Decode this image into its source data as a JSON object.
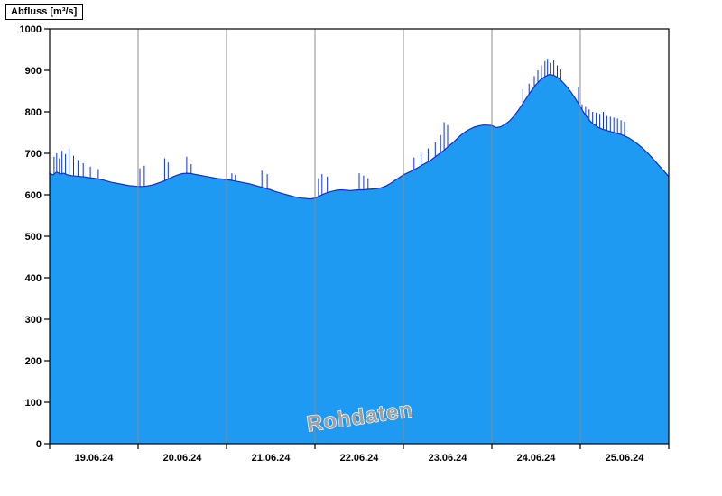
{
  "page": {
    "background": "#ffffff"
  },
  "chart_data": {
    "type": "area",
    "title": "Abfluss [m³/s]",
    "ylabel": "Abfluss [m³/s]",
    "xlabel": "",
    "watermark": "Rohdaten",
    "legend": "none",
    "grid": "vertical lines at day boundaries",
    "xlim_days": [
      0,
      7
    ],
    "ylim": [
      0,
      1000
    ],
    "y_ticks": [
      0,
      100,
      200,
      300,
      400,
      500,
      600,
      700,
      800,
      900,
      1000
    ],
    "x_tick_labels": [
      "19.06.24",
      "20.06.24",
      "21.06.24",
      "22.06.24",
      "23.06.24",
      "24.06.24",
      "25.06.24"
    ],
    "colors": {
      "fill": "#1e9af2",
      "line": "#0a33cc",
      "grid": "#8c8c8c",
      "axis": "#000000",
      "watermark": "#a0a0a0"
    },
    "series": [
      {
        "name": "Abfluss Rohdaten",
        "unit": "m³/s",
        "x_unit": "days since 19.06.24 00:00",
        "points": [
          [
            0.0,
            652
          ],
          [
            0.04,
            648
          ],
          [
            0.08,
            655
          ],
          [
            0.12,
            650
          ],
          [
            0.16,
            652
          ],
          [
            0.2,
            648
          ],
          [
            0.25,
            646
          ],
          [
            0.3,
            645
          ],
          [
            0.35,
            644
          ],
          [
            0.4,
            643
          ],
          [
            0.45,
            641
          ],
          [
            0.5,
            640
          ],
          [
            0.55,
            638
          ],
          [
            0.6,
            636
          ],
          [
            0.65,
            633
          ],
          [
            0.7,
            630
          ],
          [
            0.75,
            628
          ],
          [
            0.8,
            626
          ],
          [
            0.85,
            624
          ],
          [
            0.9,
            622
          ],
          [
            0.95,
            621
          ],
          [
            1.0,
            620
          ],
          [
            1.05,
            620
          ],
          [
            1.1,
            621
          ],
          [
            1.15,
            623
          ],
          [
            1.2,
            626
          ],
          [
            1.25,
            630
          ],
          [
            1.3,
            634
          ],
          [
            1.35,
            639
          ],
          [
            1.4,
            644
          ],
          [
            1.45,
            648
          ],
          [
            1.5,
            651
          ],
          [
            1.55,
            652
          ],
          [
            1.6,
            651
          ],
          [
            1.65,
            649
          ],
          [
            1.7,
            647
          ],
          [
            1.75,
            645
          ],
          [
            1.8,
            643
          ],
          [
            1.85,
            641
          ],
          [
            1.9,
            639
          ],
          [
            1.95,
            638
          ],
          [
            2.0,
            637
          ],
          [
            2.05,
            635
          ],
          [
            2.1,
            633
          ],
          [
            2.15,
            631
          ],
          [
            2.2,
            629
          ],
          [
            2.25,
            627
          ],
          [
            2.3,
            624
          ],
          [
            2.35,
            621
          ],
          [
            2.4,
            618
          ],
          [
            2.45,
            615
          ],
          [
            2.5,
            612
          ],
          [
            2.55,
            608
          ],
          [
            2.6,
            605
          ],
          [
            2.65,
            602
          ],
          [
            2.7,
            599
          ],
          [
            2.75,
            596
          ],
          [
            2.8,
            594
          ],
          [
            2.85,
            592
          ],
          [
            2.9,
            591
          ],
          [
            2.95,
            590
          ],
          [
            3.0,
            592
          ],
          [
            3.05,
            597
          ],
          [
            3.1,
            602
          ],
          [
            3.15,
            606
          ],
          [
            3.2,
            609
          ],
          [
            3.25,
            611
          ],
          [
            3.3,
            612
          ],
          [
            3.35,
            611
          ],
          [
            3.4,
            610
          ],
          [
            3.45,
            611
          ],
          [
            3.5,
            612
          ],
          [
            3.55,
            612
          ],
          [
            3.6,
            613
          ],
          [
            3.65,
            614
          ],
          [
            3.7,
            615
          ],
          [
            3.75,
            617
          ],
          [
            3.8,
            621
          ],
          [
            3.85,
            627
          ],
          [
            3.9,
            634
          ],
          [
            3.95,
            641
          ],
          [
            4.0,
            648
          ],
          [
            4.05,
            653
          ],
          [
            4.1,
            658
          ],
          [
            4.15,
            664
          ],
          [
            4.2,
            670
          ],
          [
            4.25,
            676
          ],
          [
            4.3,
            682
          ],
          [
            4.35,
            690
          ],
          [
            4.4,
            698
          ],
          [
            4.45,
            706
          ],
          [
            4.5,
            715
          ],
          [
            4.55,
            724
          ],
          [
            4.6,
            734
          ],
          [
            4.65,
            744
          ],
          [
            4.7,
            752
          ],
          [
            4.75,
            758
          ],
          [
            4.8,
            763
          ],
          [
            4.85,
            766
          ],
          [
            4.9,
            768
          ],
          [
            4.95,
            768
          ],
          [
            5.0,
            767
          ],
          [
            5.05,
            762
          ],
          [
            5.1,
            764
          ],
          [
            5.15,
            770
          ],
          [
            5.2,
            778
          ],
          [
            5.25,
            790
          ],
          [
            5.3,
            804
          ],
          [
            5.35,
            820
          ],
          [
            5.4,
            836
          ],
          [
            5.45,
            852
          ],
          [
            5.5,
            866
          ],
          [
            5.55,
            877
          ],
          [
            5.6,
            885
          ],
          [
            5.65,
            890
          ],
          [
            5.7,
            888
          ],
          [
            5.75,
            882
          ],
          [
            5.8,
            872
          ],
          [
            5.85,
            860
          ],
          [
            5.9,
            846
          ],
          [
            5.95,
            830
          ],
          [
            6.0,
            812
          ],
          [
            6.05,
            795
          ],
          [
            6.1,
            780
          ],
          [
            6.15,
            770
          ],
          [
            6.2,
            763
          ],
          [
            6.25,
            758
          ],
          [
            6.3,
            755
          ],
          [
            6.35,
            752
          ],
          [
            6.4,
            749
          ],
          [
            6.45,
            746
          ],
          [
            6.5,
            742
          ],
          [
            6.55,
            737
          ],
          [
            6.6,
            730
          ],
          [
            6.65,
            722
          ],
          [
            6.7,
            713
          ],
          [
            6.75,
            703
          ],
          [
            6.8,
            692
          ],
          [
            6.85,
            680
          ],
          [
            6.9,
            668
          ],
          [
            6.95,
            656
          ],
          [
            7.0,
            644
          ]
        ],
        "spikes": [
          [
            0.05,
            692
          ],
          [
            0.08,
            700
          ],
          [
            0.11,
            688
          ],
          [
            0.14,
            706
          ],
          [
            0.18,
            698
          ],
          [
            0.22,
            712
          ],
          [
            0.27,
            694
          ],
          [
            0.32,
            684
          ],
          [
            0.38,
            676
          ],
          [
            0.46,
            668
          ],
          [
            0.55,
            662
          ],
          [
            1.02,
            664
          ],
          [
            1.07,
            670
          ],
          [
            1.3,
            688
          ],
          [
            1.34,
            678
          ],
          [
            1.55,
            692
          ],
          [
            1.6,
            674
          ],
          [
            2.06,
            652
          ],
          [
            2.1,
            648
          ],
          [
            2.4,
            658
          ],
          [
            2.46,
            650
          ],
          [
            3.04,
            640
          ],
          [
            3.08,
            650
          ],
          [
            3.14,
            644
          ],
          [
            3.5,
            652
          ],
          [
            3.55,
            646
          ],
          [
            3.6,
            640
          ],
          [
            4.12,
            690
          ],
          [
            4.2,
            702
          ],
          [
            4.28,
            712
          ],
          [
            4.36,
            726
          ],
          [
            4.42,
            744
          ],
          [
            4.46,
            775
          ],
          [
            4.5,
            768
          ],
          [
            5.35,
            855
          ],
          [
            5.42,
            868
          ],
          [
            5.48,
            886
          ],
          [
            5.52,
            900
          ],
          [
            5.56,
            912
          ],
          [
            5.6,
            922
          ],
          [
            5.63,
            928
          ],
          [
            5.66,
            918
          ],
          [
            5.7,
            924
          ],
          [
            5.74,
            912
          ],
          [
            5.78,
            902
          ],
          [
            5.98,
            860
          ],
          [
            6.02,
            818
          ],
          [
            6.06,
            812
          ],
          [
            6.1,
            806
          ],
          [
            6.14,
            800
          ],
          [
            6.18,
            798
          ],
          [
            6.22,
            795
          ],
          [
            6.26,
            800
          ],
          [
            6.3,
            790
          ],
          [
            6.34,
            788
          ],
          [
            6.38,
            786
          ],
          [
            6.42,
            784
          ],
          [
            6.46,
            780
          ],
          [
            6.5,
            776
          ]
        ]
      }
    ]
  }
}
